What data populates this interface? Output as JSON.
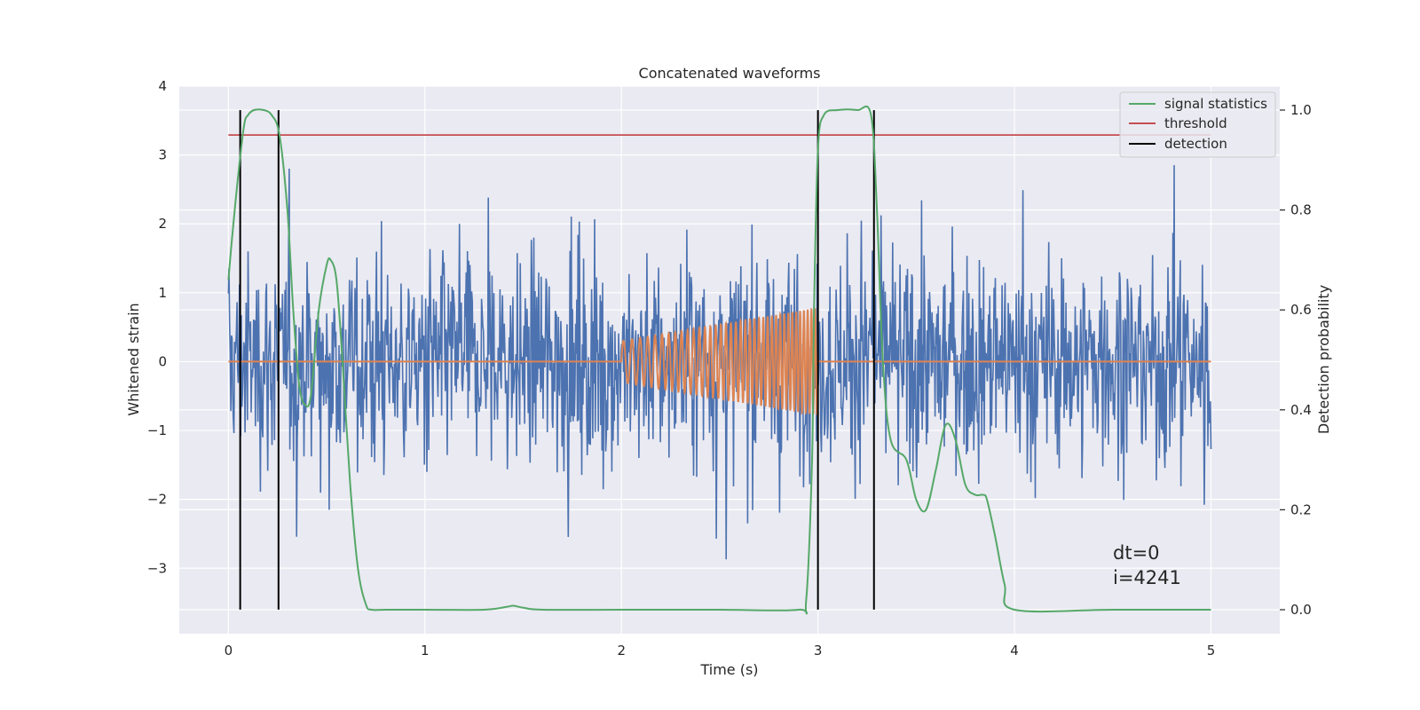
{
  "chart_data": {
    "type": "line",
    "title": "Concatenated waveforms",
    "xlabel": "Time (s)",
    "ylabel": "Whitened strain",
    "y2label": "Detection probability",
    "xlim": [
      -0.25,
      5.35
    ],
    "ylim": [
      -3.95,
      4.0
    ],
    "y2lim": [
      -0.048,
      1.048
    ],
    "xticks": [
      0,
      1,
      2,
      3,
      4,
      5
    ],
    "xtick_labels": [
      "0",
      "1",
      "2",
      "3",
      "4",
      "5"
    ],
    "yticks": [
      -3,
      -2,
      -1,
      0,
      1,
      2,
      3,
      4
    ],
    "ytick_labels": [
      "−3",
      "−2",
      "−1",
      "0",
      "1",
      "2",
      "3",
      "4"
    ],
    "y2ticks": [
      0.0,
      0.2,
      0.4,
      0.6,
      0.8,
      1.0
    ],
    "y2tick_labels": [
      "0.0",
      "0.2",
      "0.4",
      "0.6",
      "0.8",
      "1.0"
    ],
    "grid": true,
    "legend_position": "top-right",
    "legend": [
      {
        "label": "signal statistics",
        "color": "#55a868"
      },
      {
        "label": "threshold",
        "color": "#c44e52"
      },
      {
        "label": "detection",
        "color": "#000000"
      }
    ],
    "noise": {
      "color": "#4c72b0",
      "x_range": [
        0,
        5
      ],
      "samples": 1600,
      "y_range": [
        -3.65,
        3.65
      ]
    },
    "chirp": {
      "color": "#dd8452",
      "x_range": [
        2.0,
        3.0
      ],
      "start_amplitude": 0.3,
      "end_amplitude": 0.78,
      "baseline": 0
    },
    "threshold": {
      "y": 3.29,
      "x_range": [
        0,
        5
      ],
      "color": "#c44e52"
    },
    "detections": {
      "x": [
        0.06,
        0.255,
        3.0,
        3.285
      ],
      "y_range": [
        -3.6,
        3.65
      ],
      "color": "#000000"
    },
    "signal_statistics": {
      "color": "#55a868",
      "x": [
        0.0,
        0.02,
        0.05,
        0.08,
        0.1,
        0.13,
        0.18,
        0.22,
        0.26,
        0.3,
        0.33,
        0.36,
        0.39,
        0.42,
        0.46,
        0.5,
        0.52,
        0.55,
        0.58,
        0.62,
        0.66,
        0.7,
        0.73,
        0.8,
        1.0,
        1.3,
        1.42,
        1.45,
        1.5,
        1.6,
        2.0,
        2.5,
        2.9,
        2.94,
        2.97,
        2.98,
        3.0,
        3.03,
        3.1,
        3.2,
        3.27,
        3.3,
        3.33,
        3.37,
        3.45,
        3.5,
        3.55,
        3.6,
        3.65,
        3.7,
        3.75,
        3.8,
        3.84,
        3.86,
        3.9,
        3.95,
        4.0,
        4.5,
        5.0
      ],
      "y": [
        0.66,
        0.75,
        0.87,
        0.97,
        0.99,
        1.0,
        1.0,
        0.99,
        0.95,
        0.8,
        0.6,
        0.45,
        0.41,
        0.43,
        0.6,
        0.69,
        0.7,
        0.66,
        0.5,
        0.25,
        0.08,
        0.01,
        0.0,
        0.0,
        0.0,
        0.0,
        0.006,
        0.008,
        0.004,
        0.0,
        0.0,
        0.0,
        0.0,
        0.02,
        0.3,
        0.6,
        0.92,
        0.99,
        1.0,
        1.0,
        0.99,
        0.8,
        0.5,
        0.34,
        0.3,
        0.22,
        0.2,
        0.28,
        0.37,
        0.34,
        0.25,
        0.23,
        0.23,
        0.22,
        0.15,
        0.05,
        0.0,
        0.0,
        0.0
      ]
    },
    "annotations": [
      {
        "text": "dt=0",
        "x": 4.5,
        "y": -2.9
      },
      {
        "text": "i=4241",
        "x": 4.5,
        "y": -3.23
      }
    ]
  }
}
